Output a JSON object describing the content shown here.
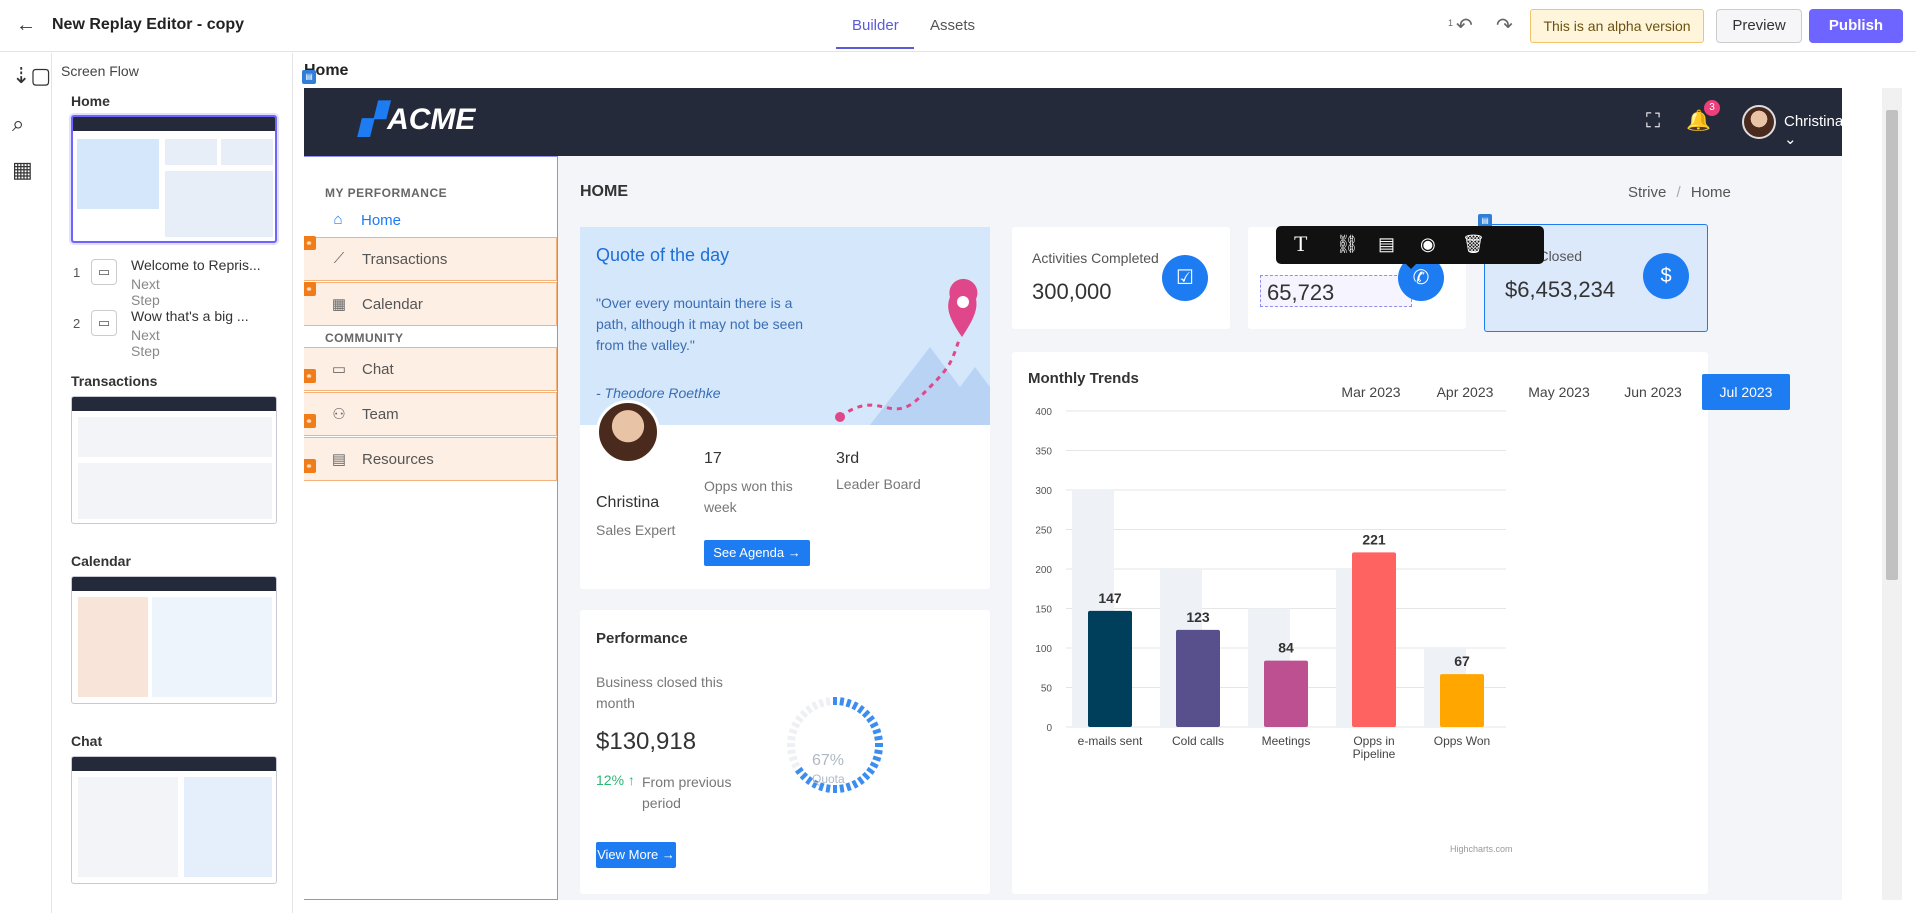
{
  "editor": {
    "title": "New Replay Editor - copy",
    "tabs": [
      "Builder",
      "Assets"
    ],
    "undo_count": "1",
    "alpha_notice": "This is an alpha version",
    "preview_label": "Preview",
    "publish_label": "Publish"
  },
  "flow": {
    "title": "Screen Flow",
    "screens": [
      {
        "name": "Home",
        "steps": [
          {
            "num": "1",
            "title": "Welcome to Repris...",
            "sub": "Next Step"
          },
          {
            "num": "2",
            "title": "Wow that's a big ...",
            "sub": "Next Step"
          }
        ]
      },
      {
        "name": "Transactions"
      },
      {
        "name": "Calendar"
      },
      {
        "name": "Chat"
      }
    ]
  },
  "canvas": {
    "screen_label": "Home"
  },
  "app": {
    "logo": "ACME",
    "notif_count": "3",
    "user": "Christina",
    "sidebar": {
      "section1": "MY PERFORMANCE",
      "section2": "COMMUNITY",
      "items": [
        "Home",
        "Transactions",
        "Calendar",
        "Chat",
        "Team",
        "Resources"
      ]
    },
    "page_title": "HOME",
    "breadcrumb": {
      "root": "Strive",
      "sep": "/",
      "current": "Home"
    },
    "quote": {
      "heading": "Quote of the day",
      "text": "\"Over every mountain there is a path, although it may not be seen from the valley.\"",
      "author": "- Theodore Roethke"
    },
    "profile": {
      "name": "Christina",
      "role": "Sales Expert",
      "opps_value": "17",
      "opps_label": "Opps won this week",
      "rank_value": "3rd",
      "rank_label": "Leader Board",
      "agenda_btn": "See Agenda →"
    },
    "kpis": [
      {
        "label": "Activities Completed",
        "value": "300,000"
      },
      {
        "label": "",
        "value": "65,723"
      },
      {
        "label": "Total Closed",
        "value": "$6,453,234"
      }
    ],
    "performance": {
      "heading": "Performance",
      "desc": "Business closed this month",
      "value": "$130,918",
      "change": "12% ↑",
      "change_desc": "From previous period",
      "gauge_value": "67%",
      "gauge_label": "Quota",
      "gauge_fraction": 0.67,
      "more_btn": "View More →"
    },
    "trends": {
      "heading": "Monthly Trends",
      "months": [
        "Mar 2023",
        "Apr 2023",
        "May 2023",
        "Jun 2023",
        "Jul 2023"
      ],
      "active_month": "Jul 2023",
      "credit": "Highcharts.com"
    }
  },
  "chart_data": {
    "type": "bar",
    "title": "",
    "categories": [
      "e-mails sent",
      "Cold calls",
      "Meetings",
      "Opps in Pipeline",
      "Opps Won"
    ],
    "series": [
      {
        "name": "",
        "values": [
          300,
          200,
          150,
          200,
          100
        ],
        "color": "#eef1f6"
      },
      {
        "name": "",
        "values": [
          147,
          123,
          84,
          221,
          67
        ]
      }
    ],
    "colors": [
      "#003f5c",
      "#58508d",
      "#bc5090",
      "#ff6361",
      "#ffa600"
    ],
    "yticks": [
      0,
      50,
      100,
      150,
      200,
      250,
      300,
      350,
      400
    ],
    "ylim": [
      0,
      400
    ],
    "grid": true,
    "legend": "none"
  }
}
